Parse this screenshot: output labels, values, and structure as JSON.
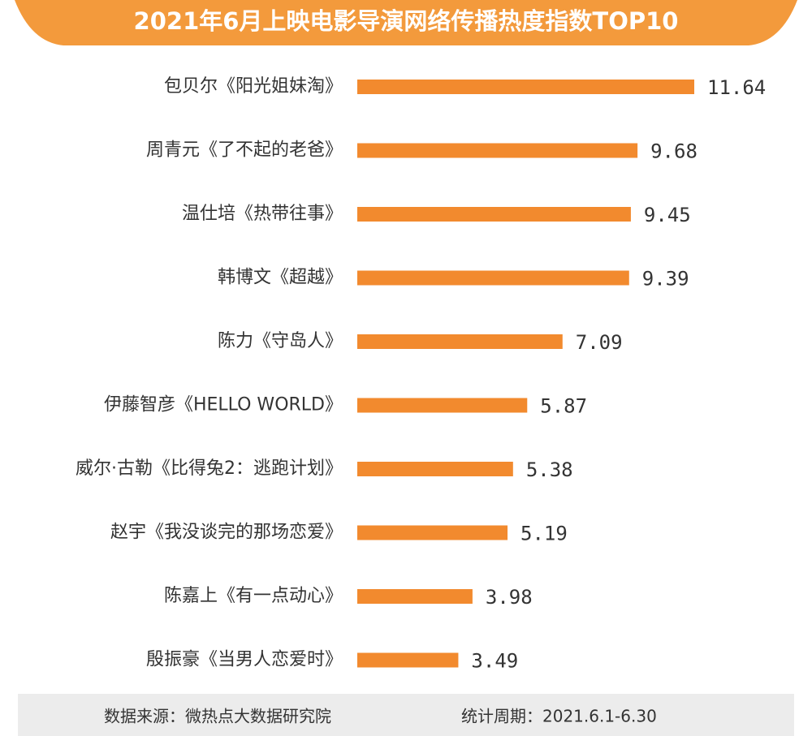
{
  "chart_data": {
    "type": "bar",
    "orientation": "horizontal",
    "title": "2021年6月上映电影导演网络传播热度指数TOP10",
    "categories": [
      "包贝尔《阳光姐妹淘》",
      "周青元《了不起的老爸》",
      "温仕培《热带往事》",
      "韩博文《超越》",
      "陈力《守岛人》",
      "伊藤智彦《HELLO WORLD》",
      "威尔·古勒《比得兔2：逃跑计划》",
      "赵宇《我没谈完的那场恋爱》",
      "陈嘉上《有一点动心》",
      "殷振豪《当男人恋爱时》"
    ],
    "values": [
      11.64,
      9.68,
      9.45,
      9.39,
      7.09,
      5.87,
      5.38,
      5.19,
      3.98,
      3.49
    ],
    "color": "#f28a2e",
    "source": "数据来源：微热点大数据研究院",
    "period": "统计周期：2021.6.1-6.30"
  }
}
